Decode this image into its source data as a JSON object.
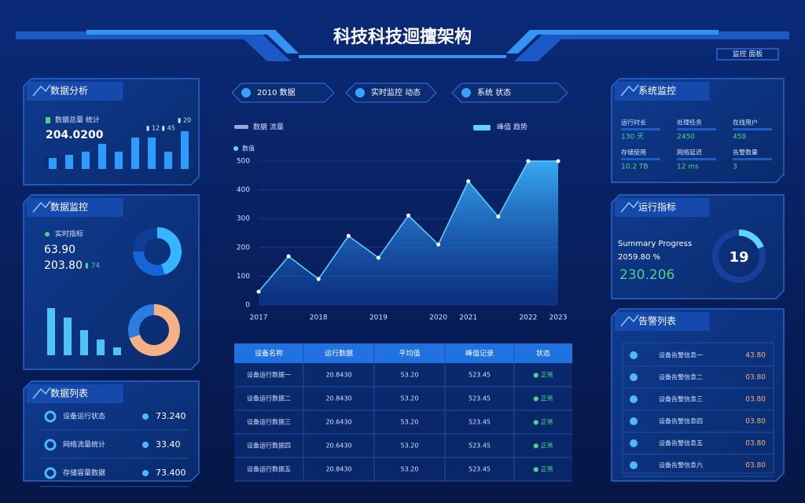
{
  "header": {
    "title": "科技科技迴擅架构",
    "badge": "监控 面板"
  },
  "tabs": [
    "2010 数据",
    "实时监控 动态",
    "系统 状态"
  ],
  "panel_a": {
    "title": "数据分析",
    "label": "数据总量 统计",
    "value": "204.0200",
    "legend": [
      "▮ 12 ▮ 45",
      "▮ 20"
    ],
    "bars": [
      14,
      18,
      22,
      32,
      22,
      40,
      40,
      22,
      48
    ],
    "color": "#2e9bff"
  },
  "panel_b": {
    "title": "数据监控",
    "label": "实时指标",
    "value_1": "63.90",
    "value_2": "203.80",
    "note": "▮ 74",
    "donut": [
      45,
      30,
      25
    ],
    "donut_colors": [
      "#36b6ff",
      "#1565d8",
      "#0d3e96"
    ],
    "bars": [
      60,
      48,
      32,
      20,
      10
    ],
    "bar_color": "#4fc3f7",
    "donut_2": [
      70,
      30
    ],
    "donut_2_colors": [
      "#f5b183",
      "#2a7de1"
    ]
  },
  "panel_c": {
    "title": "数据列表",
    "rows": [
      [
        "设备运行状态",
        "73.240"
      ],
      [
        "网络流量统计",
        "33.40"
      ],
      [
        "存储容量数据",
        "73.400"
      ]
    ]
  },
  "main_chart": {
    "type": "line",
    "legend": [
      "数据 流量",
      "峰值 趋势"
    ],
    "axis_title": "数值",
    "categories": [
      "2017",
      null,
      "2018",
      null,
      "2019",
      null,
      "2020",
      "2021",
      null,
      "2022",
      "2023"
    ],
    "values": [
      46,
      169,
      90,
      240,
      164,
      311,
      210,
      430,
      307,
      500,
      500
    ],
    "color": "#5fd4ff",
    "ylim": [
      0,
      500
    ],
    "yticks": [
      0,
      100,
      200,
      300,
      400,
      500
    ]
  },
  "center_table": {
    "header": [
      "设备名称",
      "运行数据",
      "平均值",
      "峰值记录",
      "状态"
    ],
    "rows": [
      [
        "设备运行数据一",
        "20.8430",
        "53.20",
        "523.45",
        "● 正常"
      ],
      [
        "设备运行数据二",
        "20.8430",
        "53.20",
        "523.45",
        "● 正常"
      ],
      [
        "设备运行数据三",
        "20.6430",
        "53.20",
        "523.45",
        "● 正常"
      ],
      [
        "设备运行数据四",
        "20.6430",
        "53.20",
        "523.45",
        "● 正常"
      ],
      [
        "设备运行数据五",
        "20.8430",
        "53.20",
        "523.45",
        "● 正常"
      ]
    ]
  },
  "panel_d": {
    "title": "系统监控",
    "items": [
      [
        "运行时长",
        "130 天"
      ],
      [
        "处理任务",
        "2450"
      ],
      [
        "在线用户",
        "458"
      ],
      [
        "存储使用",
        "10.2 TB"
      ],
      [
        "网络延迟",
        "12 ms"
      ],
      [
        "告警数量",
        "3"
      ]
    ]
  },
  "panel_e": {
    "title": "运行指标",
    "caption": "Summary Progress",
    "sub": "2059.80 %",
    "value": "230.206",
    "gauge": 19
  },
  "panel_f": {
    "title": "告警列表",
    "rows": [
      [
        "设备告警信息一",
        "43.80"
      ],
      [
        "设备告警信息二",
        "03.80"
      ],
      [
        "设备告警信息三",
        "03.80"
      ],
      [
        "设备告警信息四",
        "03.80"
      ],
      [
        "设备告警信息五",
        "03.80"
      ],
      [
        "设备告警信息六",
        "03.80"
      ]
    ]
  }
}
